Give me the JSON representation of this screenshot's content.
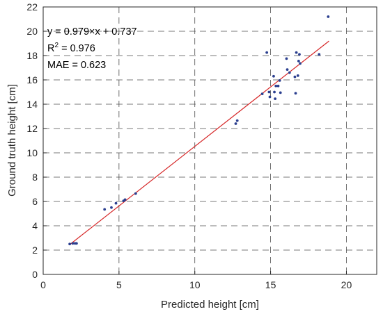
{
  "chart_data": {
    "type": "scatter",
    "xlabel": "Predicted height [cm]",
    "ylabel": "Ground truth height [cm]",
    "xlim": [
      0,
      22
    ],
    "ylim": [
      0,
      22
    ],
    "xticks": [
      0,
      5,
      10,
      15,
      20
    ],
    "yticks": [
      0,
      2,
      4,
      6,
      8,
      10,
      12,
      14,
      16,
      18,
      20,
      22
    ],
    "grid": true,
    "grid_style": "dashed",
    "annotations": {
      "equation": "y = 0.979×x + 0.737",
      "r2_base": "R",
      "r2_sup": "2",
      "r2_value": " = 0.976",
      "mae": "MAE = 0.623"
    },
    "fit_line": {
      "slope": 0.979,
      "intercept": 0.737,
      "x_range": [
        1.8,
        18.85
      ],
      "color": "#d62728"
    },
    "point_color": "#2b3f8f",
    "points": [
      [
        1.75,
        2.5
      ],
      [
        1.95,
        2.55
      ],
      [
        2.1,
        2.55
      ],
      [
        2.2,
        2.55
      ],
      [
        4.05,
        5.35
      ],
      [
        4.5,
        5.5
      ],
      [
        4.8,
        5.85
      ],
      [
        5.3,
        6.05
      ],
      [
        5.4,
        6.15
      ],
      [
        6.1,
        6.65
      ],
      [
        12.7,
        12.4
      ],
      [
        12.8,
        12.65
      ],
      [
        14.45,
        14.85
      ],
      [
        14.75,
        18.25
      ],
      [
        14.9,
        15.0
      ],
      [
        14.95,
        14.6
      ],
      [
        15.2,
        16.3
      ],
      [
        15.25,
        15.0
      ],
      [
        15.3,
        14.45
      ],
      [
        15.35,
        15.5
      ],
      [
        15.5,
        15.5
      ],
      [
        15.6,
        15.95
      ],
      [
        15.65,
        14.95
      ],
      [
        16.05,
        17.75
      ],
      [
        16.1,
        16.85
      ],
      [
        16.25,
        16.6
      ],
      [
        16.6,
        16.25
      ],
      [
        16.65,
        14.9
      ],
      [
        16.7,
        18.25
      ],
      [
        16.8,
        16.35
      ],
      [
        16.85,
        17.55
      ],
      [
        16.9,
        18.1
      ],
      [
        16.95,
        17.35
      ],
      [
        18.2,
        18.1
      ],
      [
        18.8,
        21.2
      ]
    ]
  }
}
